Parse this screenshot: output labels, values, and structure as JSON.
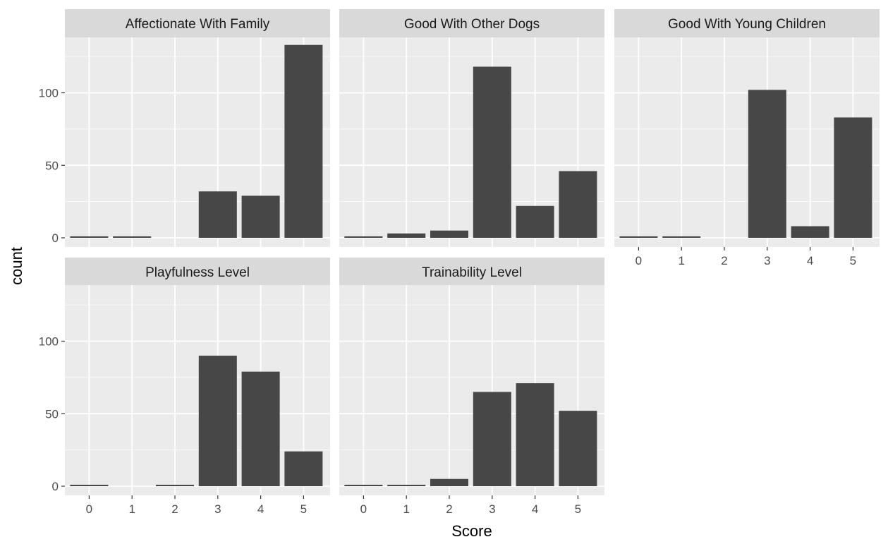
{
  "chart_data": {
    "type": "bar",
    "facet_layout": "wrap",
    "xlabel": "Score",
    "ylabel": "count",
    "categories": [
      "0",
      "1",
      "2",
      "3",
      "4",
      "5"
    ],
    "ylim": [
      0,
      150
    ],
    "y_ticks": [
      0,
      50,
      100
    ],
    "grid": true,
    "legend": "none",
    "colors": {
      "bar": "#474747",
      "panel": "#ebebeb",
      "strip": "#d9d9d9",
      "grid": "#ffffff"
    },
    "panels": [
      {
        "title": "Affectionate With Family",
        "values": [
          1,
          1,
          0,
          32,
          29,
          133
        ]
      },
      {
        "title": "Good With Other Dogs",
        "values": [
          1,
          3,
          5,
          118,
          22,
          46
        ]
      },
      {
        "title": "Good With Young Children",
        "values": [
          1,
          1,
          0,
          102,
          8,
          83
        ]
      },
      {
        "title": "Playfulness Level",
        "values": [
          1,
          0,
          1,
          90,
          79,
          24
        ]
      },
      {
        "title": "Trainability Level",
        "values": [
          1,
          1,
          5,
          65,
          71,
          52
        ]
      }
    ]
  }
}
